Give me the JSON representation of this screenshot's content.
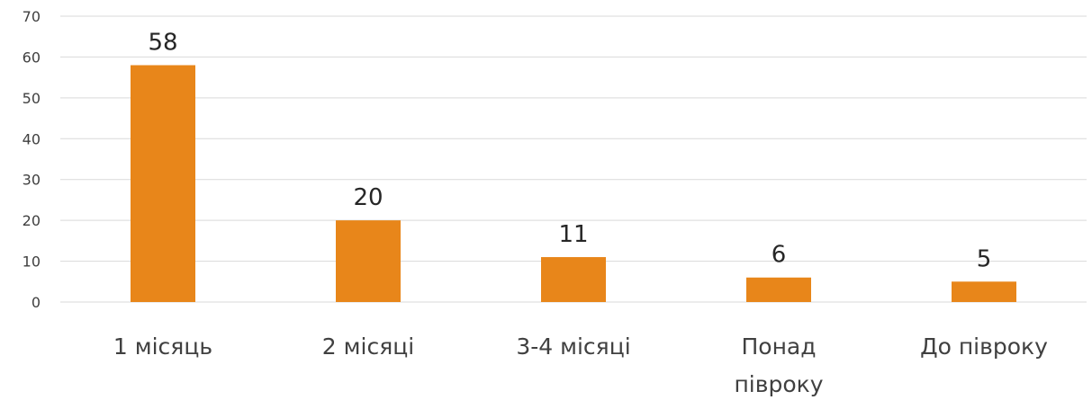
{
  "chart_data": {
    "type": "bar",
    "categories": [
      [
        "1 місяць"
      ],
      [
        "2 місяці"
      ],
      [
        "3-4 місяці"
      ],
      [
        "Понад",
        "півроку"
      ],
      [
        "До півроку"
      ]
    ],
    "values": [
      58,
      20,
      11,
      6,
      5
    ],
    "data_labels": [
      "58",
      "20",
      "11",
      "6",
      "5"
    ],
    "ylim": [
      0,
      70
    ],
    "y_ticks": [
      0,
      10,
      20,
      30,
      40,
      50,
      60,
      70
    ],
    "grid": true,
    "legend": "none",
    "colors": {
      "bar": "#E8861A",
      "grid": "#D9D9D9",
      "tick_text": "#404040",
      "label_text": "#262626"
    }
  }
}
